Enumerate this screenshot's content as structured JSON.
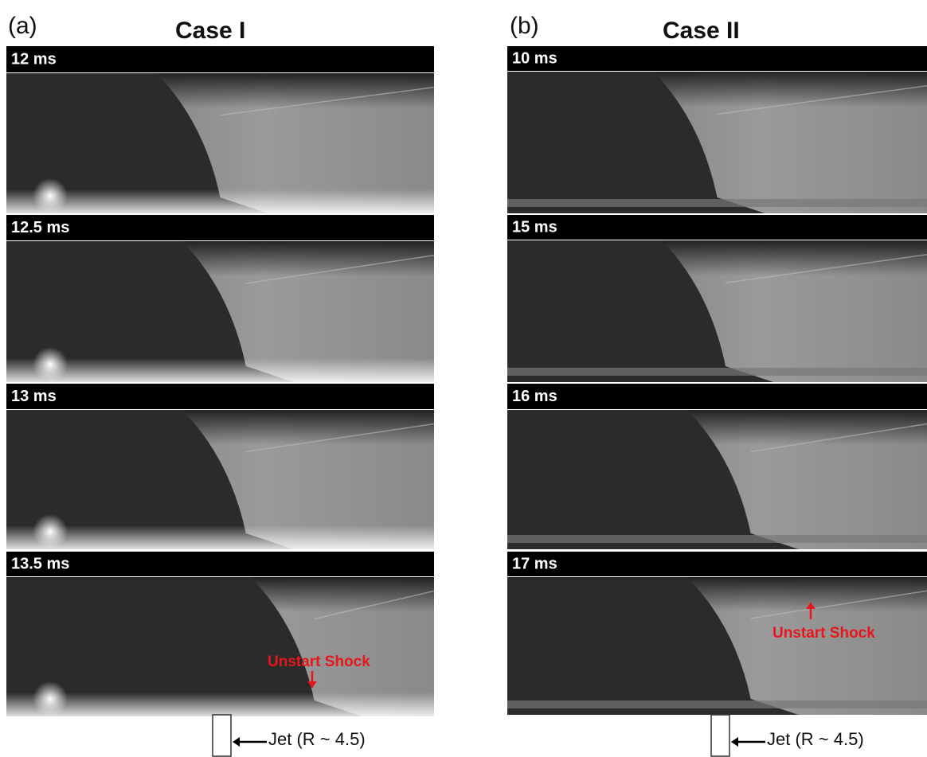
{
  "panels": [
    {
      "label": "(a)",
      "title": "Case I",
      "frames": [
        "12 ms",
        "12.5 ms",
        "13 ms",
        "13.5 ms"
      ],
      "annotation": "Unstart Shock",
      "jet_label": "Jet (R ~ 4.5)"
    },
    {
      "label": "(b)",
      "title": "Case II",
      "frames": [
        "10 ms",
        "15 ms",
        "16 ms",
        "17 ms"
      ],
      "annotation": "Unstart Shock",
      "jet_label": "Jet (R ~ 4.5)"
    }
  ]
}
